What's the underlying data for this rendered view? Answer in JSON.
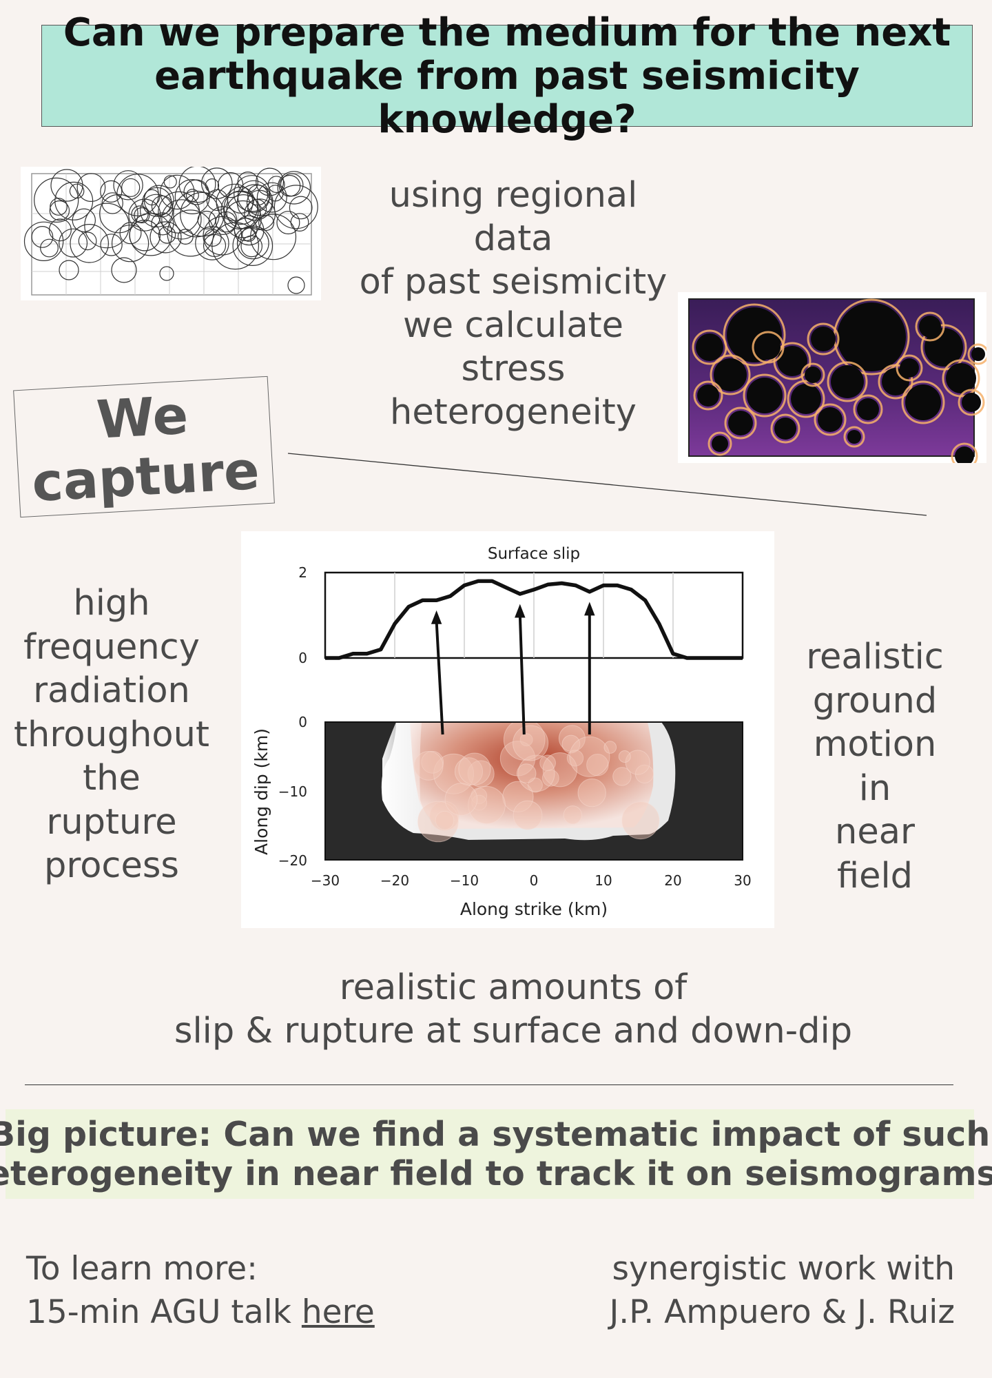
{
  "title": {
    "line1": "Can we prepare the medium for the next",
    "line2": "earthquake from past seismicity knowledge?"
  },
  "intro": {
    "line1": "using regional",
    "line2": "data",
    "line3": "of past seismicity",
    "line4": "we calculate",
    "line5": "stress",
    "line6": "heterogeneity"
  },
  "capture": {
    "line1": "We",
    "line2": "capture"
  },
  "left_text": {
    "line1": "high",
    "line2": "frequency",
    "line3": "radiation",
    "line4": "throughout",
    "line5": "the",
    "line6": "rupture",
    "line7": "process"
  },
  "right_text": {
    "line1": "realistic",
    "line2": "ground",
    "line3": "motion",
    "line4": "in",
    "line5": "near",
    "line6": "field"
  },
  "bottom_text": {
    "line1": "realistic amounts of",
    "line2": "slip & rupture at surface and down-dip"
  },
  "big_picture": {
    "line1": "Big picture: Can we find a systematic impact of such",
    "line2": "heterogeneity in near field to track it on seismograms?"
  },
  "footer_left": {
    "line1": "To learn more:",
    "line2_prefix": "15-min AGU talk ",
    "link": "here"
  },
  "footer_right": {
    "line1": "synergistic work with",
    "line2": "J.P. Ampuero & J. Ruiz"
  },
  "chart_data": {
    "type": "line",
    "title": "Surface slip",
    "xlabel": "Along strike (km)",
    "ylabel": "Along dip (km)",
    "x_ticks": [
      "−30",
      "−20",
      "−10",
      "0",
      "10",
      "20",
      "30"
    ],
    "top_y_ticks": [
      "2",
      "0"
    ],
    "bottom_y_ticks": [
      "0",
      "−10",
      "−20"
    ],
    "xlim": [
      -30,
      30
    ],
    "top_ylim": [
      0,
      2
    ],
    "bottom_ylim": [
      -20,
      0
    ],
    "series": [
      {
        "name": "Surface slip",
        "x": [
          -30,
          -28,
          -26,
          -24,
          -22,
          -20,
          -18,
          -16,
          -14,
          -12,
          -10,
          -8,
          -6,
          -4,
          -2,
          0,
          2,
          4,
          6,
          8,
          10,
          12,
          14,
          16,
          18,
          20,
          22,
          24,
          26,
          28,
          30
        ],
        "y": [
          0,
          0.0,
          0.1,
          0.1,
          0.2,
          0.8,
          1.2,
          1.35,
          1.35,
          1.45,
          1.7,
          1.8,
          1.8,
          1.65,
          1.5,
          1.6,
          1.72,
          1.75,
          1.7,
          1.55,
          1.7,
          1.7,
          1.6,
          1.35,
          0.8,
          0.1,
          0.0,
          0.0,
          0.0,
          0.0,
          0.0
        ]
      }
    ],
    "arrows_from_x": [
      -14,
      -2,
      8
    ]
  },
  "colors": {
    "title_bg": "#b1e7d8",
    "big_picture_bg": "#eef4dd",
    "page_bg": "#f8f3f0",
    "slip_warm": "#b2432c"
  }
}
